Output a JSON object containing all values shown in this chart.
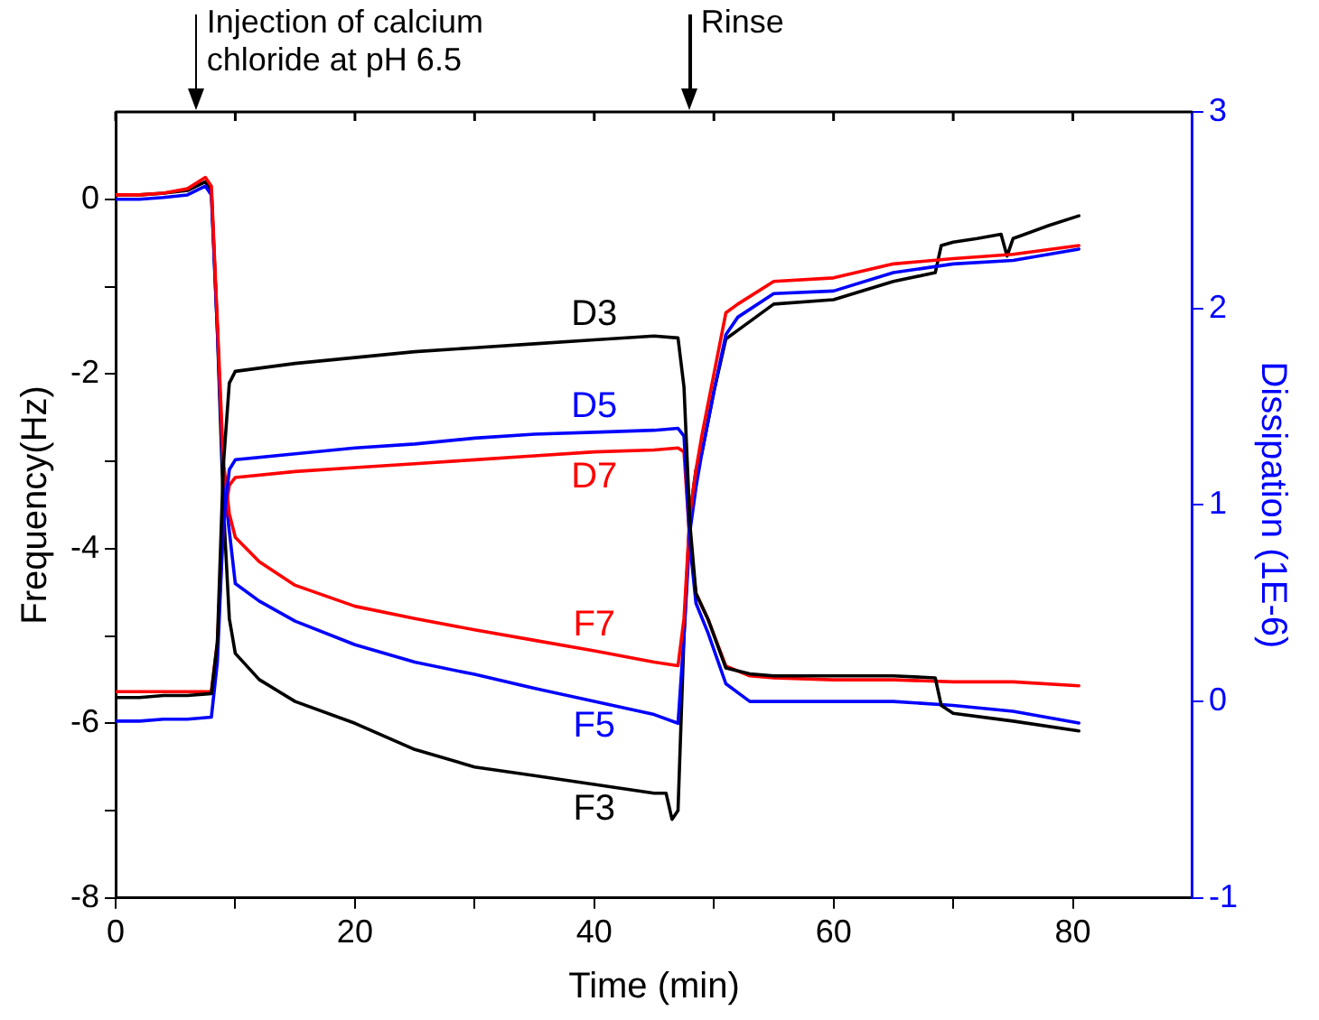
{
  "chart_data": {
    "type": "line",
    "xlabel": "Time (min)",
    "ylabel": "Frequency(Hz)",
    "y2label": "Dissipation (1E-6)",
    "xlim": [
      0,
      90
    ],
    "xticks": [
      0,
      {
        "value": 10,
        "label": null
      },
      20,
      {
        "value": 30,
        "label": null
      },
      40,
      {
        "value": 50,
        "label": null
      },
      60,
      {
        "value": 70,
        "label": null
      },
      80
    ],
    "ylim": [
      -8,
      1
    ],
    "yticks": [
      -8,
      {
        "value": -7,
        "label": null
      },
      -6,
      {
        "value": -5,
        "label": null
      },
      -4,
      {
        "value": -3,
        "label": null
      },
      -2,
      {
        "value": -1,
        "label": null
      },
      0
    ],
    "y2lim": [
      -1,
      3
    ],
    "y2ticks": [
      -1,
      0,
      1,
      2,
      3
    ],
    "grid": false,
    "legend": false,
    "marker": "none",
    "line_style": "solid",
    "ref_lines": [
      {
        "axis": "x",
        "value": 6.7,
        "label": "Injection of calcium chloride at pH 6.5"
      },
      {
        "axis": "x",
        "value": 48,
        "label": "Rinse"
      }
    ],
    "series": [
      {
        "name": "D3",
        "color": "#000000",
        "axis": "y2",
        "x": [
          0,
          2,
          4,
          6,
          8,
          8.5,
          9,
          9.5,
          10,
          15,
          20,
          25,
          30,
          35,
          40,
          45,
          47,
          47.5,
          48,
          48.5,
          49.5,
          51,
          53,
          55,
          60,
          65,
          68.5,
          69,
          70,
          75,
          80.5
        ],
        "values": [
          0.02,
          0.02,
          0.03,
          0.03,
          0.04,
          0.3,
          1.2,
          1.62,
          1.68,
          1.72,
          1.75,
          1.78,
          1.8,
          1.82,
          1.84,
          1.86,
          1.85,
          1.6,
          0.9,
          0.55,
          0.42,
          0.17,
          0.14,
          0.13,
          0.13,
          0.13,
          0.12,
          -0.02,
          -0.06,
          -0.1,
          -0.15
        ]
      },
      {
        "name": "D5",
        "color": "#0000ff",
        "axis": "y2",
        "x": [
          0,
          2,
          4,
          6,
          8,
          8.5,
          9,
          9.5,
          10,
          15,
          20,
          25,
          30,
          35,
          40,
          45,
          47,
          47.5,
          48,
          48.5,
          49.5,
          51,
          53,
          55,
          60,
          65,
          70,
          75,
          80.5
        ],
        "values": [
          -0.1,
          -0.1,
          -0.09,
          -0.09,
          -0.08,
          0.2,
          0.9,
          1.18,
          1.23,
          1.26,
          1.29,
          1.31,
          1.34,
          1.36,
          1.37,
          1.38,
          1.39,
          1.35,
          0.8,
          0.5,
          0.35,
          0.09,
          0.0,
          0.0,
          0.0,
          0.0,
          -0.02,
          -0.05,
          -0.11
        ]
      },
      {
        "name": "D7",
        "color": "#ff0000",
        "axis": "y2",
        "x": [
          0,
          2,
          4,
          6,
          8,
          8.5,
          9,
          9.5,
          10,
          15,
          20,
          25,
          30,
          35,
          40,
          45,
          47,
          47.5,
          48,
          48.5,
          49.5,
          51,
          53,
          55,
          60,
          65,
          70,
          75,
          80.5
        ],
        "values": [
          0.05,
          0.05,
          0.05,
          0.05,
          0.05,
          0.3,
          0.9,
          1.1,
          1.14,
          1.17,
          1.19,
          1.21,
          1.23,
          1.25,
          1.27,
          1.28,
          1.29,
          1.27,
          0.8,
          0.55,
          0.42,
          0.18,
          0.13,
          0.12,
          0.11,
          0.11,
          0.1,
          0.1,
          0.08
        ]
      },
      {
        "name": "F7",
        "color": "#ff0000",
        "x": [
          0,
          2,
          4,
          6,
          7.5,
          8,
          8.5,
          9,
          9.5,
          10,
          12,
          15,
          20,
          25,
          30,
          35,
          40,
          45,
          47,
          47.5,
          48,
          48.5,
          49,
          50,
          51,
          52,
          55,
          60,
          65,
          70,
          75,
          80.5
        ],
        "values": [
          0.05,
          0.05,
          0.07,
          0.12,
          0.25,
          0.15,
          -1.4,
          -3.0,
          -3.6,
          -3.87,
          -4.15,
          -4.42,
          -4.66,
          -4.8,
          -4.93,
          -5.05,
          -5.17,
          -5.3,
          -5.34,
          -4.8,
          -3.6,
          -3.1,
          -2.7,
          -2.0,
          -1.3,
          -1.2,
          -0.94,
          -0.9,
          -0.74,
          -0.68,
          -0.63,
          -0.53
        ]
      },
      {
        "name": "F5",
        "color": "#0000ff",
        "x": [
          0,
          2,
          4,
          6,
          7.5,
          8,
          8.5,
          9,
          9.5,
          10,
          12,
          15,
          20,
          25,
          30,
          35,
          40,
          45,
          47,
          47.5,
          48,
          48.5,
          49,
          50,
          51,
          52,
          55,
          60,
          65,
          70,
          75,
          80.5
        ],
        "values": [
          0.0,
          0.0,
          0.02,
          0.05,
          0.15,
          0.05,
          -1.5,
          -3.2,
          -3.8,
          -4.4,
          -4.6,
          -4.83,
          -5.1,
          -5.3,
          -5.44,
          -5.6,
          -5.75,
          -5.9,
          -6.0,
          -5.0,
          -3.8,
          -3.3,
          -2.9,
          -2.2,
          -1.55,
          -1.35,
          -1.08,
          -1.05,
          -0.84,
          -0.74,
          -0.7,
          -0.57
        ]
      },
      {
        "name": "F3",
        "color": "#000000",
        "x": [
          0,
          2,
          4,
          6,
          7.5,
          8,
          8.5,
          9,
          9.5,
          10,
          12,
          15,
          20,
          25,
          30,
          35,
          40,
          45,
          46,
          46.5,
          47,
          47.5,
          48,
          48.5,
          49,
          50,
          51,
          52,
          55,
          60,
          65,
          68.5,
          69,
          70,
          72,
          74,
          74.5,
          75,
          78,
          80.5
        ],
        "values": [
          0.05,
          0.05,
          0.07,
          0.1,
          0.2,
          0.1,
          -1.5,
          -3.5,
          -4.8,
          -5.2,
          -5.5,
          -5.75,
          -6.0,
          -6.3,
          -6.5,
          -6.6,
          -6.7,
          -6.8,
          -6.8,
          -7.1,
          -7.0,
          -5.0,
          -3.6,
          -3.1,
          -2.9,
          -2.2,
          -1.6,
          -1.5,
          -1.2,
          -1.15,
          -0.94,
          -0.84,
          -0.53,
          -0.49,
          -0.45,
          -0.4,
          -0.65,
          -0.45,
          -0.3,
          -0.19
        ]
      }
    ]
  }
}
